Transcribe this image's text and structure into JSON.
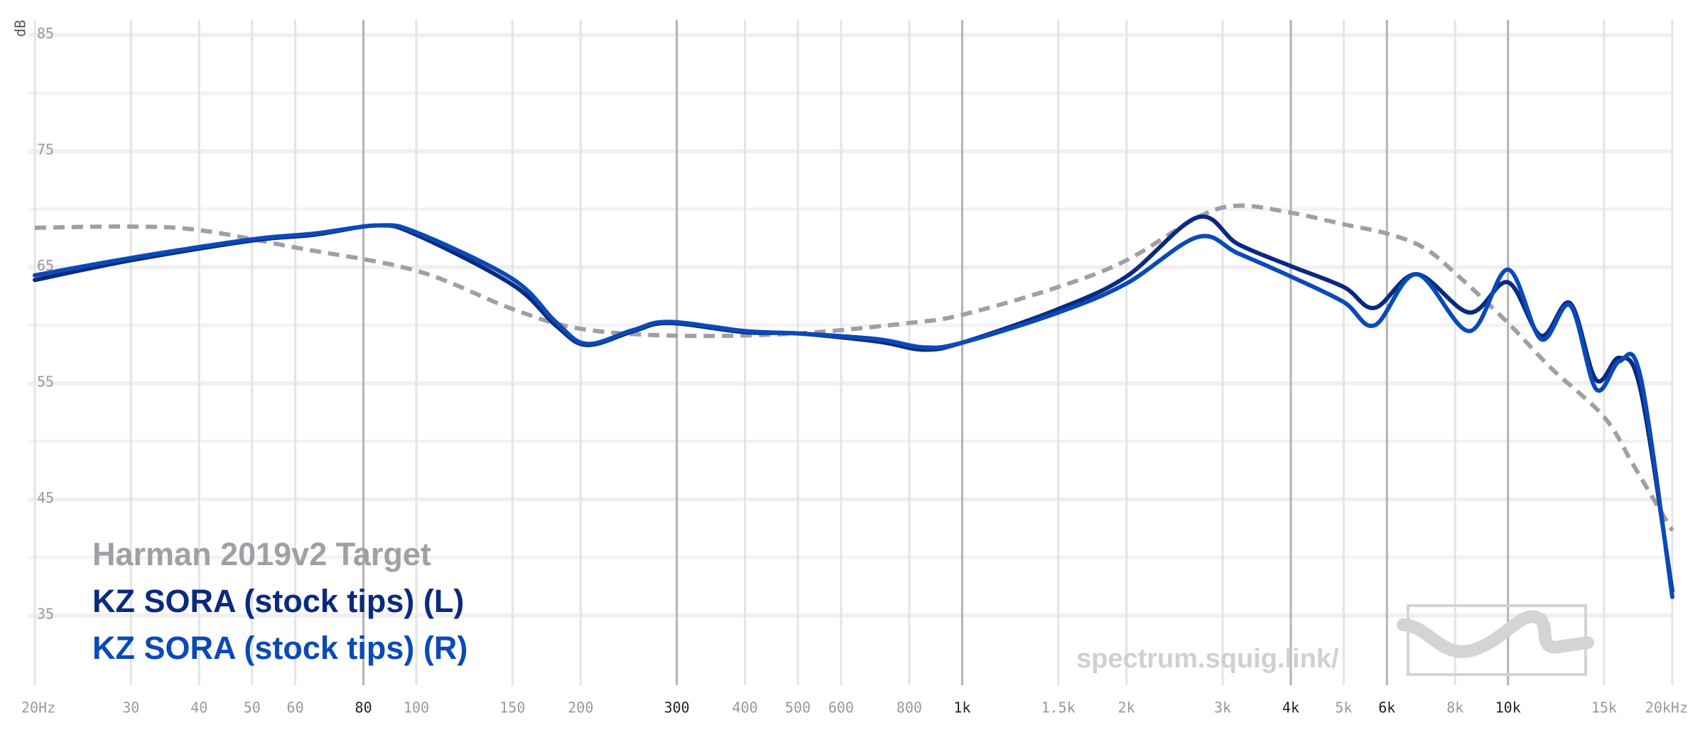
{
  "chart_data": {
    "type": "line",
    "ylabel": "dB",
    "log_x": true,
    "grid": true,
    "watermark": "spectrum.squig.link/",
    "xlim": [
      20,
      20000
    ],
    "ylim": [
      29,
      86
    ],
    "yticks": [
      35,
      45,
      55,
      65,
      75,
      85
    ],
    "y_minor_ticks": [
      40,
      50,
      60,
      70,
      80
    ],
    "xticks": [
      {
        "value": 20,
        "label": "20Hz"
      },
      30,
      40,
      50,
      60,
      80,
      100,
      150,
      200,
      300,
      400,
      500,
      600,
      800,
      {
        "value": 1000,
        "label": "1k"
      },
      {
        "value": 1500,
        "label": "1.5k"
      },
      {
        "value": 2000,
        "label": "2k"
      },
      {
        "value": 3000,
        "label": "3k"
      },
      {
        "value": 4000,
        "label": "4k"
      },
      {
        "value": 5000,
        "label": "5k"
      },
      {
        "value": 6000,
        "label": "6k"
      },
      {
        "value": 8000,
        "label": "8k"
      },
      {
        "value": 10000,
        "label": "10k"
      },
      {
        "value": 15000,
        "label": "15k"
      },
      {
        "value": 20000,
        "label": "20kHz"
      }
    ],
    "xticks_emphasized": [
      80,
      300,
      1000,
      4000,
      6000,
      10000
    ],
    "series": [
      {
        "name": "Harman 2019v2 Target",
        "color": "#a09fa6",
        "dashed": true,
        "x": [
          20,
          30,
          40,
          60,
          100,
          150,
          200,
          300,
          500,
          800,
          1000,
          1500,
          2000,
          2700,
          3200,
          4000,
          5000,
          6000,
          7000,
          8000,
          10000,
          12000,
          15000,
          17000,
          20000
        ],
        "values": [
          68.4,
          68.5,
          68.2,
          66.7,
          64.7,
          61.4,
          59.7,
          59.1,
          59.3,
          60.2,
          60.9,
          63.3,
          65.6,
          69.3,
          70.3,
          69.7,
          68.7,
          67.9,
          66.7,
          64.5,
          60.2,
          56.3,
          52.1,
          47.9,
          42.3
        ]
      },
      {
        "name": "KZ SORA (stock tips) (L)",
        "color": "#0a2a80",
        "x": [
          20,
          30,
          50,
          65,
          85,
          100,
          150,
          180,
          205,
          250,
          290,
          400,
          500,
          700,
          850,
          1000,
          1500,
          2000,
          2700,
          3200,
          4000,
          5000,
          5700,
          6800,
          8500,
          10000,
          11500,
          13000,
          14500,
          16000,
          17500,
          20000
        ],
        "values": [
          63.9,
          65.6,
          67.3,
          67.8,
          68.6,
          67.8,
          63.5,
          60.0,
          58.3,
          59.5,
          60.2,
          59.4,
          59.3,
          58.6,
          57.9,
          58.5,
          61.4,
          64.2,
          69.3,
          67.0,
          65.1,
          63.3,
          61.5,
          64.4,
          61.1,
          63.7,
          59.1,
          61.9,
          55.3,
          57.2,
          54.4,
          37.1
        ]
      },
      {
        "name": "KZ SORA (stock tips) (R)",
        "color": "#0a4ab8",
        "x": [
          20,
          30,
          50,
          65,
          85,
          100,
          150,
          180,
          205,
          250,
          290,
          400,
          500,
          700,
          850,
          1000,
          1500,
          2000,
          2700,
          3200,
          4000,
          5000,
          5700,
          6800,
          8500,
          10000,
          11500,
          13000,
          14500,
          16000,
          17500,
          20000
        ],
        "values": [
          64.3,
          65.8,
          67.4,
          67.9,
          68.6,
          68.0,
          64.0,
          60.3,
          58.4,
          59.6,
          60.3,
          59.5,
          59.3,
          58.8,
          58.1,
          58.5,
          61.1,
          63.6,
          67.6,
          66.2,
          64.2,
          62.0,
          60.0,
          64.4,
          59.5,
          64.8,
          58.8,
          61.7,
          54.5,
          56.9,
          55.5,
          36.6
        ]
      }
    ]
  }
}
